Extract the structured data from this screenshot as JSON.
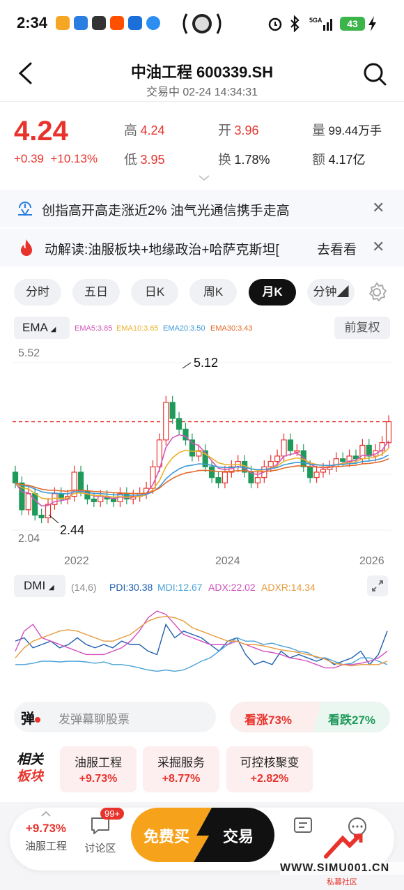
{
  "status": {
    "time": "2:34",
    "battery": "43"
  },
  "header": {
    "title": "中油工程 600339.SH",
    "subtitle": "交易中 02-24 14:34:31"
  },
  "quote": {
    "price": "4.24",
    "change": "+0.39",
    "change_pct": "+10.13%",
    "high_label": "高",
    "high": "4.24",
    "low_label": "低",
    "low": "3.95",
    "open_label": "开",
    "open": "3.96",
    "turnover_label": "换",
    "turnover": "1.78%",
    "volume_label": "量",
    "volume": "99.44万手",
    "amount_label": "额",
    "amount": "4.17亿"
  },
  "banners": [
    {
      "text": "创指高开高走涨近2% 油气光通信携手走高"
    },
    {
      "text": "动解读:油服板块+地缘政治+哈萨克斯坦[",
      "action": "去看看"
    }
  ],
  "tabs": [
    "分时",
    "五日",
    "日K",
    "周K",
    "月K",
    "分钟◢"
  ],
  "active_tab": "月K",
  "ema": {
    "label": "EMA",
    "legend": [
      {
        "text": "EMA5:3.85",
        "color": "#d259b9"
      },
      {
        "text": "EMA10:3.65",
        "color": "#e9b12c"
      },
      {
        "text": "EMA20:3.50",
        "color": "#3d9ad9"
      },
      {
        "text": "EMA30:3.43",
        "color": "#e46b2b"
      }
    ],
    "adjust": "前复权"
  },
  "kline": {
    "y_max_label": "5.52",
    "y_min_label": "2.04",
    "high_marker": "5.12",
    "low_marker": "2.44",
    "x_labels": [
      "2022",
      "2024",
      "2026"
    ]
  },
  "dmi": {
    "label": "DMI",
    "params": "(14,6)",
    "legend": [
      {
        "text": "PDI:30.38",
        "color": "#1f5fae"
      },
      {
        "text": "MDI:12.67",
        "color": "#4aa3d8"
      },
      {
        "text": "ADX:22.02",
        "color": "#d24fbf"
      },
      {
        "text": "ADXR:14.34",
        "color": "#e69a3a"
      }
    ]
  },
  "barrage": {
    "icon_text": "弹",
    "placeholder": "发弹幕聊股票"
  },
  "vote": {
    "up": "看涨73%",
    "down": "看跌27%"
  },
  "sectors": {
    "title_line1": "相关",
    "title_line2": "板块",
    "items": [
      {
        "name": "油服工程",
        "pct": "+9.73%"
      },
      {
        "name": "采掘服务",
        "pct": "+8.77%"
      },
      {
        "name": "可控核聚变",
        "pct": "+2.82%"
      }
    ]
  },
  "bottom": {
    "sector_pct": "+9.73%",
    "sector_name": "油服工程",
    "forum_badge": "99+",
    "forum_label": "讨论区",
    "buy_label": "免费买",
    "trade_label": "交易"
  },
  "watermark": {
    "line1": "WWW.SIMU001.CN",
    "line2": "私募社区"
  }
}
